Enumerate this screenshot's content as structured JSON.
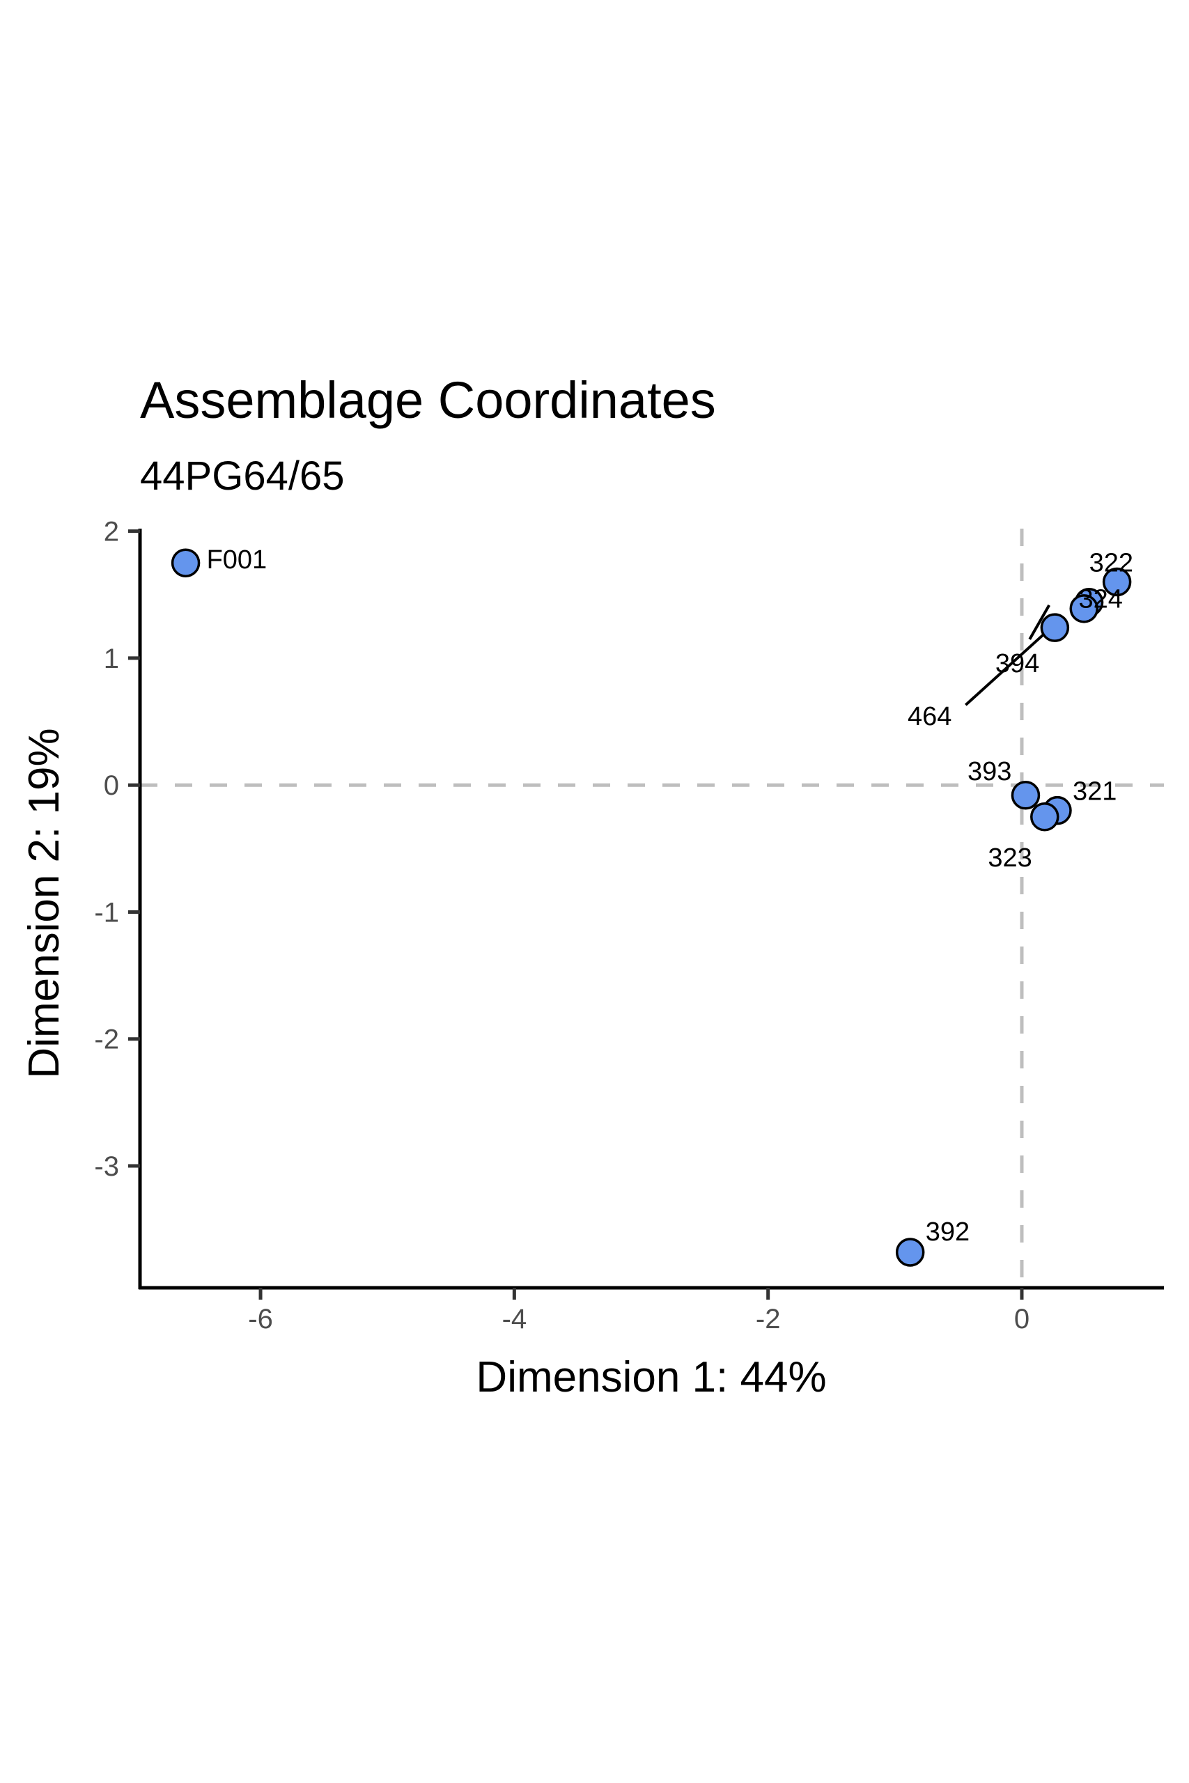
{
  "chart_data": {
    "type": "scatter",
    "title": "Assemblage Coordinates",
    "subtitle": "44PG64/65",
    "xlabel": "Dimension 1:  44%",
    "ylabel": "Dimension 2:  19%",
    "xlim": [
      -6.95,
      1.12
    ],
    "ylim": [
      -3.96,
      2.02
    ],
    "xticks": [
      -6,
      -4,
      -2,
      0
    ],
    "yticks": [
      -3,
      -2,
      -1,
      0,
      1,
      2
    ],
    "xtick_labels": [
      "-6",
      "-4",
      "-2",
      "0"
    ],
    "ytick_labels": [
      "-3",
      "-2",
      "-1",
      "0",
      "1",
      "2"
    ],
    "reference_lines": {
      "x": 0,
      "y": 0
    },
    "grid": false,
    "points": [
      {
        "label": "F001",
        "x": -6.59,
        "y": 1.75
      },
      {
        "label": "322",
        "x": 0.75,
        "y": 1.6
      },
      {
        "label": "324",
        "x": 0.53,
        "y": 1.44
      },
      {
        "label": "394",
        "x": 0.49,
        "y": 1.39
      },
      {
        "label": "464",
        "x": 0.26,
        "y": 1.24
      },
      {
        "label": "393",
        "x": 0.03,
        "y": -0.08
      },
      {
        "label": "321",
        "x": 0.28,
        "y": -0.2
      },
      {
        "label": "323",
        "x": 0.18,
        "y": -0.25
      },
      {
        "label": "392",
        "x": -0.88,
        "y": -3.68
      }
    ],
    "colors": {
      "point_fill": "#6495ED",
      "point_stroke": "#000000",
      "ref_line": "#BEBEBE"
    }
  }
}
